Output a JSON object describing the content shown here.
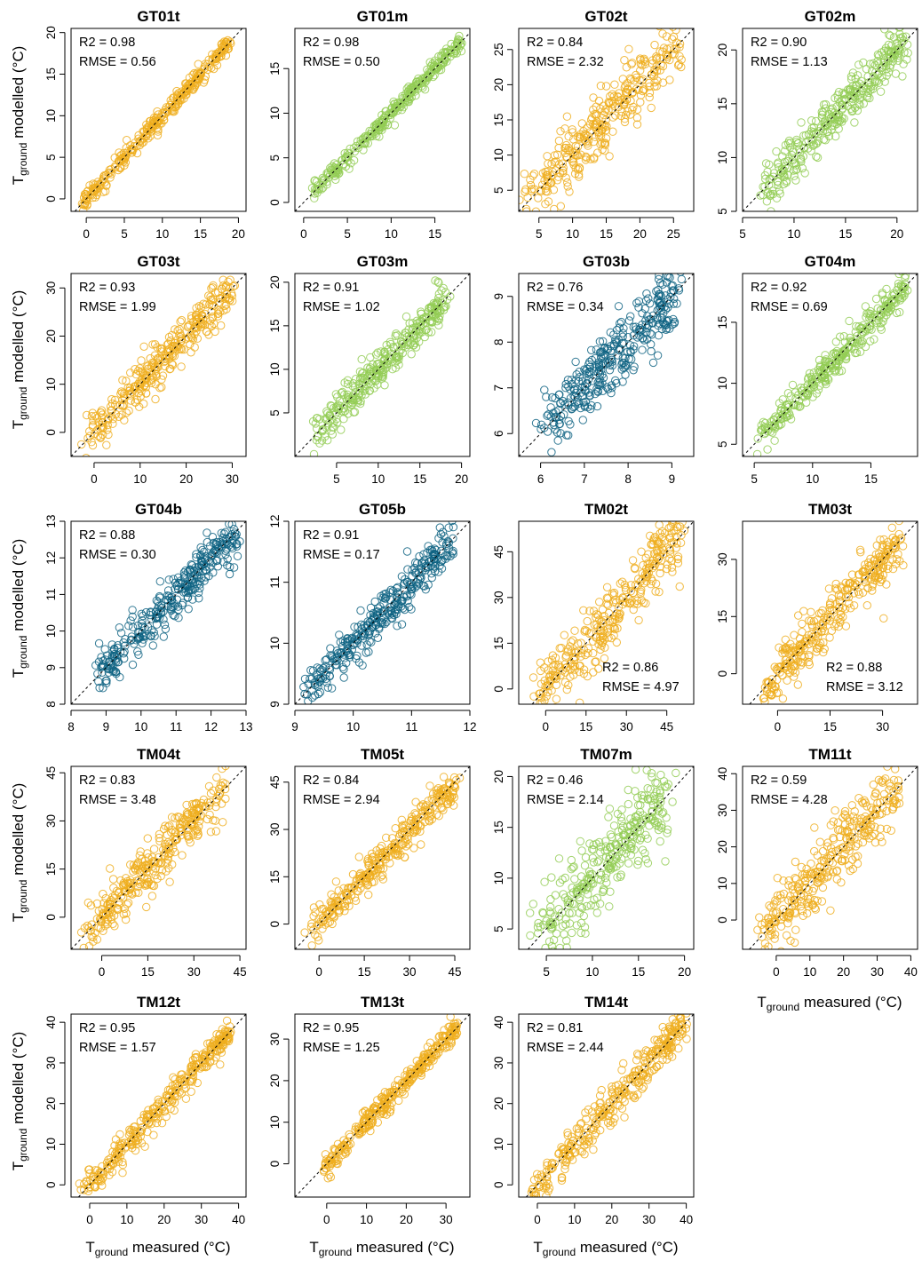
{
  "figure": {
    "ylabel_main": "T",
    "ylabel_sub": "ground",
    "ylabel_rest": " modelled (°C)",
    "xlabel_main": "T",
    "xlabel_sub": "ground",
    "xlabel_rest": " measured (°C)"
  },
  "colors": {
    "t": "#EFAE1E",
    "m": "#93CC55",
    "b": "#0E6383",
    "ref_line": "#000000"
  },
  "chart_data": [
    {
      "type": "scatter",
      "title": "GT01t",
      "color_key": "t",
      "xlim": [
        -2,
        21
      ],
      "ylim": [
        -1.5,
        20.5
      ],
      "xticks": [
        0,
        5,
        10,
        15,
        20
      ],
      "yticks": [
        0,
        5,
        10,
        15,
        20
      ],
      "data_range": [
        -0.5,
        19
      ],
      "spread": 0.5,
      "r2_label": "R2 = 0.98",
      "rmse_label": "RMSE = 0.56",
      "stat_pos": "top-left"
    },
    {
      "type": "scatter",
      "title": "GT01m",
      "color_key": "m",
      "xlim": [
        -1,
        19
      ],
      "ylim": [
        -1,
        19.5
      ],
      "xticks": [
        0,
        5,
        10,
        15
      ],
      "yticks": [
        0,
        5,
        10,
        15
      ],
      "data_range": [
        1,
        18
      ],
      "spread": 0.45,
      "r2_label": "R2 = 0.98",
      "rmse_label": "RMSE = 0.50",
      "stat_pos": "top-left"
    },
    {
      "type": "scatter",
      "title": "GT02t",
      "color_key": "t",
      "xlim": [
        2,
        28
      ],
      "ylim": [
        2,
        28
      ],
      "xticks": [
        5,
        10,
        15,
        20,
        25
      ],
      "yticks": [
        5,
        10,
        15,
        20,
        25
      ],
      "data_range": [
        3,
        26
      ],
      "spread": 2.2,
      "r2_label": "R2 = 0.84",
      "rmse_label": "RMSE = 2.32",
      "stat_pos": "top-left"
    },
    {
      "type": "scatter",
      "title": "GT02m",
      "color_key": "m",
      "xlim": [
        5,
        22
      ],
      "ylim": [
        5,
        22
      ],
      "xticks": [
        5,
        10,
        15,
        20
      ],
      "yticks": [
        5,
        10,
        15,
        20
      ],
      "data_range": [
        7,
        21
      ],
      "spread": 1.1,
      "r2_label": "R2 = 0.90",
      "rmse_label": "RMSE = 1.13",
      "stat_pos": "top-left"
    },
    {
      "type": "scatter",
      "title": "GT03t",
      "color_key": "t",
      "xlim": [
        -5,
        33
      ],
      "ylim": [
        -5,
        33
      ],
      "xticks": [
        0,
        10,
        20,
        30
      ],
      "yticks": [
        0,
        10,
        20,
        30
      ],
      "data_range": [
        -2,
        30
      ],
      "spread": 2.0,
      "r2_label": "R2 = 0.93",
      "rmse_label": "RMSE = 1.99",
      "stat_pos": "top-left"
    },
    {
      "type": "scatter",
      "title": "GT03m",
      "color_key": "m",
      "xlim": [
        0,
        21
      ],
      "ylim": [
        0,
        21
      ],
      "xticks": [
        5,
        10,
        15,
        20
      ],
      "yticks": [
        5,
        10,
        15,
        20
      ],
      "data_range": [
        2,
        18
      ],
      "spread": 1.0,
      "r2_label": "R2 = 0.91",
      "rmse_label": "RMSE = 1.02",
      "stat_pos": "top-left"
    },
    {
      "type": "scatter",
      "title": "GT03b",
      "color_key": "b",
      "xlim": [
        5.5,
        9.5
      ],
      "ylim": [
        5.5,
        9.5
      ],
      "xticks": [
        6,
        7,
        8,
        9
      ],
      "yticks": [
        6,
        7,
        8,
        9
      ],
      "data_range": [
        6.1,
        9.1
      ],
      "spread": 0.34,
      "r2_label": "R2 = 0.76",
      "rmse_label": "RMSE = 0.34",
      "stat_pos": "top-left"
    },
    {
      "type": "scatter",
      "title": "GT04m",
      "color_key": "m",
      "xlim": [
        4,
        19
      ],
      "ylim": [
        4,
        19
      ],
      "xticks": [
        5,
        10,
        15
      ],
      "yticks": [
        5,
        10,
        15
      ],
      "data_range": [
        5.5,
        18
      ],
      "spread": 0.7,
      "r2_label": "R2 = 0.92",
      "rmse_label": "RMSE = 0.69",
      "stat_pos": "top-left"
    },
    {
      "type": "scatter",
      "title": "GT04b",
      "color_key": "b",
      "xlim": [
        8,
        13
      ],
      "ylim": [
        8,
        13
      ],
      "xticks": [
        8,
        9,
        10,
        11,
        12,
        13
      ],
      "yticks": [
        8,
        9,
        10,
        11,
        12,
        13
      ],
      "data_range": [
        8.8,
        12.7
      ],
      "spread": 0.3,
      "r2_label": "R2 = 0.88",
      "rmse_label": "RMSE = 0.30",
      "stat_pos": "top-left"
    },
    {
      "type": "scatter",
      "title": "GT05b",
      "color_key": "b",
      "xlim": [
        9,
        12
      ],
      "ylim": [
        9,
        12
      ],
      "xticks": [
        9,
        10,
        11,
        12
      ],
      "yticks": [
        9,
        10,
        11,
        12
      ],
      "data_range": [
        9.2,
        11.7
      ],
      "spread": 0.17,
      "r2_label": "R2 = 0.91",
      "rmse_label": "RMSE = 0.17",
      "stat_pos": "top-left"
    },
    {
      "type": "scatter",
      "title": "TM02t",
      "color_key": "t",
      "xlim": [
        -10,
        55
      ],
      "ylim": [
        -5,
        55
      ],
      "xticks": [
        0,
        15,
        30,
        45
      ],
      "yticks": [
        0,
        15,
        30,
        45
      ],
      "data_range": [
        -3,
        50
      ],
      "spread": 5.0,
      "r2_label": "R2 = 0.86",
      "rmse_label": "RMSE = 4.97",
      "stat_pos": "bottom-right"
    },
    {
      "type": "scatter",
      "title": "TM03t",
      "color_key": "t",
      "xlim": [
        -10,
        40
      ],
      "ylim": [
        -8,
        40
      ],
      "xticks": [
        0,
        15,
        30
      ],
      "yticks": [
        0,
        15,
        30
      ],
      "data_range": [
        -4,
        35
      ],
      "spread": 3.1,
      "r2_label": "R2 = 0.88",
      "rmse_label": "RMSE = 3.12",
      "stat_pos": "bottom-right"
    },
    {
      "type": "scatter",
      "title": "TM04t",
      "color_key": "t",
      "xlim": [
        -10,
        47
      ],
      "ylim": [
        -10,
        47
      ],
      "xticks": [
        0,
        15,
        30,
        45
      ],
      "yticks": [
        0,
        15,
        30,
        45
      ],
      "data_range": [
        -5,
        40
      ],
      "spread": 3.5,
      "r2_label": "R2 = 0.83",
      "rmse_label": "RMSE = 3.48",
      "stat_pos": "top-left"
    },
    {
      "type": "scatter",
      "title": "TM05t",
      "color_key": "t",
      "xlim": [
        -8,
        50
      ],
      "ylim": [
        -8,
        50
      ],
      "xticks": [
        0,
        15,
        30,
        45
      ],
      "yticks": [
        0,
        15,
        30,
        45
      ],
      "data_range": [
        -3,
        45
      ],
      "spread": 2.9,
      "r2_label": "R2 = 0.84",
      "rmse_label": "RMSE = 2.94",
      "stat_pos": "top-left"
    },
    {
      "type": "scatter",
      "title": "TM07m",
      "color_key": "m",
      "xlim": [
        2,
        21
      ],
      "ylim": [
        3,
        21
      ],
      "xticks": [
        5,
        10,
        15,
        20
      ],
      "yticks": [
        5,
        10,
        15,
        20
      ],
      "data_range": [
        4,
        18
      ],
      "spread": 2.1,
      "r2_label": "R2 = 0.46",
      "rmse_label": "RMSE = 2.14",
      "stat_pos": "top-left"
    },
    {
      "type": "scatter",
      "title": "TM11t",
      "color_key": "t",
      "xlim": [
        -10,
        42
      ],
      "ylim": [
        -8,
        42
      ],
      "xticks": [
        0,
        10,
        20,
        30,
        40
      ],
      "yticks": [
        0,
        10,
        20,
        30,
        40
      ],
      "data_range": [
        -5,
        36
      ],
      "spread": 4.3,
      "r2_label": "R2 = 0.59",
      "rmse_label": "RMSE = 4.28",
      "stat_pos": "top-left"
    },
    {
      "type": "scatter",
      "title": "TM12t",
      "color_key": "t",
      "xlim": [
        -5,
        42
      ],
      "ylim": [
        -3,
        42
      ],
      "xticks": [
        0,
        10,
        20,
        30,
        40
      ],
      "yticks": [
        0,
        10,
        20,
        30,
        40
      ],
      "data_range": [
        -2,
        38
      ],
      "spread": 1.6,
      "r2_label": "R2 = 0.95",
      "rmse_label": "RMSE = 1.57",
      "stat_pos": "top-left"
    },
    {
      "type": "scatter",
      "title": "TM13t",
      "color_key": "t",
      "xlim": [
        -8,
        36
      ],
      "ylim": [
        -8,
        36
      ],
      "xticks": [
        0,
        10,
        20,
        30
      ],
      "yticks": [
        0,
        10,
        20,
        30
      ],
      "data_range": [
        -1,
        33
      ],
      "spread": 1.3,
      "r2_label": "R2 = 0.95",
      "rmse_label": "RMSE = 1.25",
      "stat_pos": "top-left"
    },
    {
      "type": "scatter",
      "title": "TM14t",
      "color_key": "t",
      "xlim": [
        -5,
        42
      ],
      "ylim": [
        -3,
        42
      ],
      "xticks": [
        0,
        10,
        20,
        30,
        40
      ],
      "yticks": [
        0,
        10,
        20,
        30,
        40
      ],
      "data_range": [
        -2,
        40
      ],
      "spread": 2.4,
      "r2_label": "R2 = 0.81",
      "rmse_label": "RMSE = 2.44",
      "stat_pos": "top-left"
    }
  ]
}
